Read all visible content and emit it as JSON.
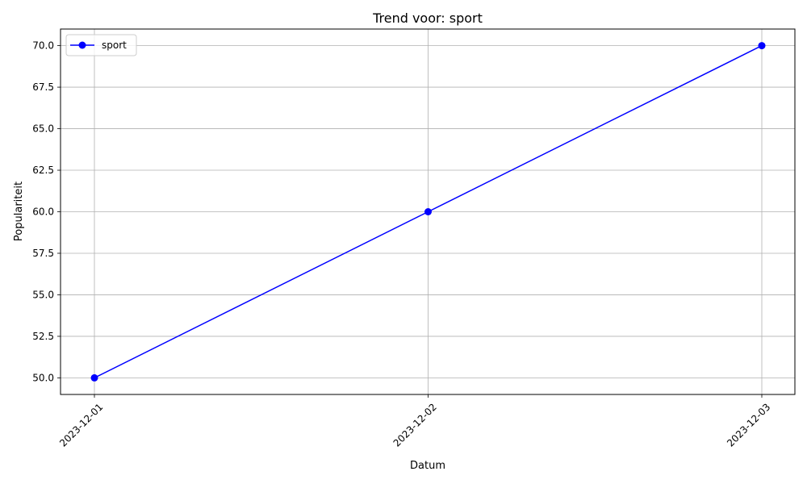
{
  "chart_data": {
    "type": "line",
    "title": "Trend voor: sport",
    "xlabel": "Datum",
    "ylabel": "Populariteit",
    "x": [
      "2023-12-01",
      "2023-12-02",
      "2023-12-03"
    ],
    "series": [
      {
        "name": "sport",
        "values": [
          50.0,
          60.0,
          70.0
        ],
        "color": "#0000ff",
        "marker": "circle"
      }
    ],
    "ylim": [
      49.0,
      71.0
    ],
    "yticks": [
      "50.0",
      "52.5",
      "55.0",
      "57.5",
      "60.0",
      "62.5",
      "65.0",
      "67.5",
      "70.0"
    ],
    "xtick_rotation_deg": 45,
    "grid": true,
    "legend": "top-left"
  }
}
